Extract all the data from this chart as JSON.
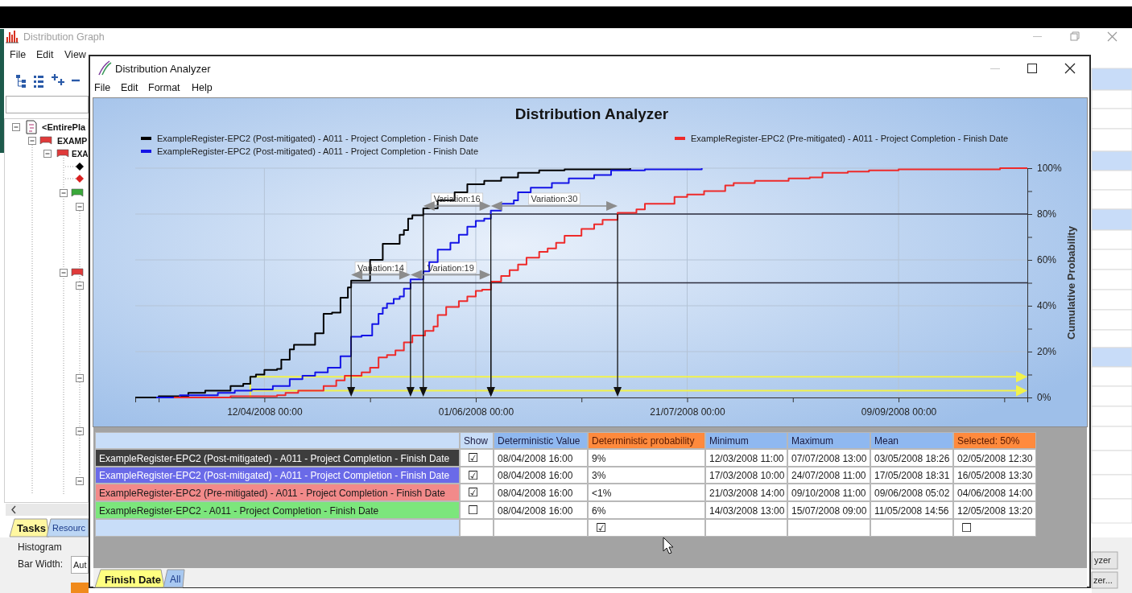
{
  "chart_data": [
    {
      "type": "step",
      "title": "Distribution Analyzer",
      "ylabel": "Cumulative Probability",
      "xlim": [
        "2008-03-12T11:00",
        "2008-10-09T11:00"
      ],
      "xticks": [
        {
          "value": "2008-03-18",
          "label": null
        },
        {
          "value": "2008-04-12",
          "label": "12/04/2008 00:00"
        },
        {
          "value": "2008-05-07",
          "label": null
        },
        {
          "value": "2008-06-01",
          "label": "01/06/2008 00:00"
        },
        {
          "value": "2008-06-26",
          "label": null
        },
        {
          "value": "2008-07-21",
          "label": "21/07/2008 00:00"
        },
        {
          "value": "2008-08-15",
          "label": null
        },
        {
          "value": "2008-09-09",
          "label": "09/09/2008 00:00"
        },
        {
          "value": "2008-10-04",
          "label": null
        }
      ],
      "ylim": [
        0,
        100
      ],
      "yticks": [
        {
          "value": 0,
          "label": "0%"
        },
        {
          "value": 10,
          "label": null
        },
        {
          "value": 20,
          "label": "20%"
        },
        {
          "value": 30,
          "label": null
        },
        {
          "value": 40,
          "label": "40%"
        },
        {
          "value": 50,
          "label": null
        },
        {
          "value": 60,
          "label": "60%"
        },
        {
          "value": 70,
          "label": null
        },
        {
          "value": 80,
          "label": "80%"
        },
        {
          "value": 90,
          "label": null
        },
        {
          "value": 100,
          "label": "100%"
        }
      ],
      "grid": true,
      "legend": "top",
      "series": [
        {
          "name": "ExampleRegister-EPC2 (Post-mitigated) - A011 - Project Completion - Finish Date",
          "color": "#000000",
          "x": [
            "2008-03-12T11:00",
            "2008-03-18",
            "2008-03-25",
            "2008-03-29",
            "2008-04-04",
            "2008-04-07",
            "2008-04-08T16:00",
            "2008-04-10",
            "2008-04-12",
            "2008-04-15",
            "2008-04-16",
            "2008-04-18",
            "2008-04-19",
            "2008-04-24",
            "2008-04-26",
            "2008-04-28",
            "2008-04-30",
            "2008-05-01T18:00",
            "2008-05-02T12:30",
            "2008-05-07",
            "2008-05-10",
            "2008-05-14",
            "2008-05-15",
            "2008-05-16",
            "2008-05-17",
            "2008-05-19T14:00",
            "2008-05-23",
            "2008-05-27",
            "2008-05-30",
            "2008-06-03",
            "2008-06-07",
            "2008-06-11",
            "2008-06-16",
            "2008-06-22",
            "2008-07-07T13:00"
          ],
          "values": [
            0,
            0.5,
            2,
            3,
            5,
            6,
            9,
            10,
            12,
            12.5,
            16.5,
            21,
            23,
            28,
            36.5,
            37,
            43.5,
            48,
            51,
            60,
            67,
            71,
            73,
            78,
            79.5,
            82.5,
            86,
            89.5,
            93,
            94.5,
            96,
            98,
            99,
            99.5,
            100
          ]
        },
        {
          "name": "ExampleRegister-EPC2 (Post-mitigated) - A011 - Project Completion - Finish Date",
          "color": "#1414e6",
          "x": [
            "2008-03-17T10:00",
            "2008-03-23",
            "2008-04-01",
            "2008-04-05",
            "2008-04-09",
            "2008-04-14",
            "2008-04-18",
            "2008-04-21",
            "2008-04-24",
            "2008-04-27",
            "2008-04-30",
            "2008-05-02T12:00",
            "2008-05-05",
            "2008-05-07T12:00",
            "2008-05-09",
            "2008-05-10",
            "2008-05-11",
            "2008-05-12T14:00",
            "2008-05-14",
            "2008-05-15",
            "2008-05-16T13:30",
            "2008-05-19T14:00",
            "2008-05-21",
            "2008-05-23",
            "2008-05-26",
            "2008-05-28",
            "2008-05-30",
            "2008-06-01",
            "2008-06-03",
            "2008-06-04T13:30",
            "2008-06-07",
            "2008-06-10",
            "2008-06-11",
            "2008-06-14",
            "2008-06-19",
            "2008-06-23",
            "2008-06-29",
            "2008-07-03",
            "2008-07-11",
            "2008-07-24T11:00"
          ],
          "values": [
            0,
            1,
            2,
            3,
            3.5,
            5,
            8,
            9.5,
            11,
            13,
            18,
            26.5,
            27,
            32,
            36.5,
            39,
            41,
            43,
            44,
            47.5,
            51.5,
            55,
            59,
            64.5,
            67.5,
            71,
            74.5,
            77,
            78,
            81.5,
            84.5,
            86,
            89.5,
            91.5,
            93.5,
            95.5,
            97,
            99,
            99.5,
            100
          ]
        },
        {
          "name": "ExampleRegister-EPC2 (Pre-mitigated) - A011 - Project Completion - Finish Date",
          "color": "#ee2a2a",
          "x": [
            "2008-03-21T14:00",
            "2008-04-04",
            "2008-04-15",
            "2008-04-17",
            "2008-04-20",
            "2008-04-26",
            "2008-04-29",
            "2008-05-01",
            "2008-05-05",
            "2008-05-07",
            "2008-05-09",
            "2008-05-11",
            "2008-05-13",
            "2008-05-15",
            "2008-05-17",
            "2008-05-20",
            "2008-05-22",
            "2008-05-23",
            "2008-05-25",
            "2008-05-28",
            "2008-05-30",
            "2008-06-01",
            "2008-06-02T12:00",
            "2008-06-04T14:00",
            "2008-06-07",
            "2008-06-09",
            "2008-06-11",
            "2008-06-13",
            "2008-06-16",
            "2008-06-18",
            "2008-06-20",
            "2008-06-22",
            "2008-06-26",
            "2008-06-29",
            "2008-07-01",
            "2008-07-04T13:00",
            "2008-07-09",
            "2008-07-11",
            "2008-07-18",
            "2008-07-21",
            "2008-07-25",
            "2008-07-30",
            "2008-08-01",
            "2008-08-06",
            "2008-08-14",
            "2008-08-19",
            "2008-08-22",
            "2008-08-28",
            "2008-09-02",
            "2008-09-09",
            "2008-10-03",
            "2008-10-09T11:00"
          ],
          "values": [
            0,
            0.5,
            1,
            2,
            3,
            5,
            7.5,
            9.5,
            11,
            13,
            17.5,
            18.5,
            20.5,
            24,
            27,
            29,
            31,
            36,
            39.5,
            42,
            44,
            46.5,
            47,
            50.5,
            53,
            55.5,
            58,
            61,
            63.5,
            65,
            67.5,
            70.5,
            73.5,
            75.5,
            77.5,
            80.5,
            82,
            84.5,
            87.5,
            88.5,
            90,
            92.5,
            93.5,
            94.5,
            95.5,
            96,
            98,
            98.5,
            99,
            99.5,
            100,
            100
          ]
        }
      ],
      "ref_lines": [
        {
          "axis": "y",
          "value": 50,
          "color": "#2e2e3e"
        },
        {
          "axis": "y",
          "value": 80,
          "color": "#2e2e3e"
        },
        {
          "axis": "x",
          "value": "2008-04-08T16:00",
          "color": "#f2f24a"
        },
        {
          "axis": "y",
          "value": 9,
          "color": "#f2f24a"
        },
        {
          "axis": "y",
          "value": 3,
          "color": "#f2f24a"
        }
      ],
      "annotations": [
        {
          "text": "Variation:14",
          "x": "2008-05-09T13:00",
          "y": 50
        },
        {
          "text": "Variation:19",
          "x": "2008-05-26T01:45",
          "y": 50
        },
        {
          "text": "Variation:16",
          "x": "2008-05-27T13:45",
          "y": 80
        },
        {
          "text": "Variation:30",
          "x": "2008-06-19T13:15",
          "y": 80
        }
      ]
    },
    {
      "type": "other",
      "annotations": [
        "Show",
        "Deterministic Value",
        "Deterministic probability",
        "Minimum",
        "Maximum",
        "Mean",
        "Selected: 50%",
        "ExampleRegister-EPC2 (Post-mitigated) - A011 - Project Completion - Finish Date",
        "☑",
        "08/04/2008 16:00",
        "9%",
        "12/03/2008 11:00",
        "07/07/2008 13:00",
        "03/05/2008 18:26",
        "02/05/2008 12:30",
        "ExampleRegister-EPC2 (Post-mitigated) - A011 - Project Completion - Finish Date",
        "☑",
        "08/04/2008 16:00",
        "3%",
        "17/03/2008 10:00",
        "24/07/2008 11:00",
        "17/05/2008 18:31",
        "16/05/2008 13:30",
        "ExampleRegister-EPC2 (Pre-mitigated) - A011 - Project Completion - Finish Date",
        "☑",
        "08/04/2008 16:00",
        "<1%",
        "21/03/2008 14:00",
        "09/10/2008 11:00",
        "09/06/2008 05:02",
        "04/06/2008 14:00",
        "ExampleRegister-EPC2 - A011 - Project Completion - Finish Date",
        "☐",
        "08/04/2008 16:00",
        "6%",
        "14/03/2008 13:00",
        "15/07/2008 09:00",
        "11/05/2008 14:56",
        "12/05/2008 13:20",
        "☑",
        "☐"
      ]
    },
    {
      "type": "other",
      "annotations": [
        "Distribution Graph",
        "File",
        "Edit",
        "View",
        "<EntirePla",
        "EXAMP",
        "EXA",
        "Tasks",
        "Resourc",
        "Histogram",
        "Bar Width:",
        "Aut",
        "yzer",
        "zer...",
        "Distribution Analyzer",
        "File",
        "Edit",
        "Format",
        "Help",
        "Finish Date",
        "All"
      ]
    }
  ]
}
